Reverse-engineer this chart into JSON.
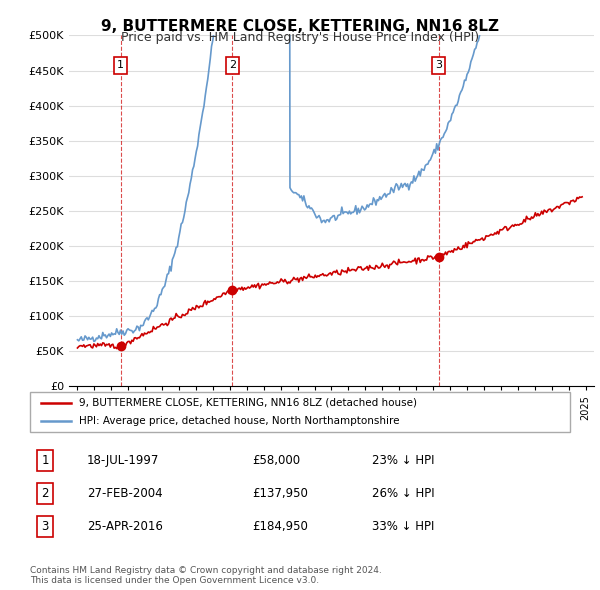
{
  "title": "9, BUTTERMERE CLOSE, KETTERING, NN16 8LZ",
  "subtitle": "Price paid vs. HM Land Registry's House Price Index (HPI)",
  "ylim": [
    0,
    500000
  ],
  "yticks": [
    0,
    50000,
    100000,
    150000,
    200000,
    250000,
    300000,
    350000,
    400000,
    450000,
    500000
  ],
  "ytick_labels": [
    "£0",
    "£50K",
    "£100K",
    "£150K",
    "£200K",
    "£250K",
    "£300K",
    "£350K",
    "£400K",
    "£450K",
    "£500K"
  ],
  "sales": [
    {
      "date_num": 1997.55,
      "price": 58000,
      "label": "1"
    },
    {
      "date_num": 2004.15,
      "price": 137950,
      "label": "2"
    },
    {
      "date_num": 2016.32,
      "price": 184950,
      "label": "3"
    }
  ],
  "sale_color": "#cc0000",
  "hpi_color": "#6699cc",
  "legend_sale_label": "9, BUTTERMERE CLOSE, KETTERING, NN16 8LZ (detached house)",
  "legend_hpi_label": "HPI: Average price, detached house, North Northamptonshire",
  "table_rows": [
    {
      "num": "1",
      "date": "18-JUL-1997",
      "price": "£58,000",
      "hpi": "23% ↓ HPI"
    },
    {
      "num": "2",
      "date": "27-FEB-2004",
      "price": "£137,950",
      "hpi": "26% ↓ HPI"
    },
    {
      "num": "3",
      "date": "25-APR-2016",
      "price": "£184,950",
      "hpi": "33% ↓ HPI"
    }
  ],
  "footnote": "Contains HM Land Registry data © Crown copyright and database right 2024.\nThis data is licensed under the Open Government Licence v3.0.",
  "background_color": "#ffffff",
  "grid_color": "#dddddd",
  "vline_color": "#cc0000"
}
